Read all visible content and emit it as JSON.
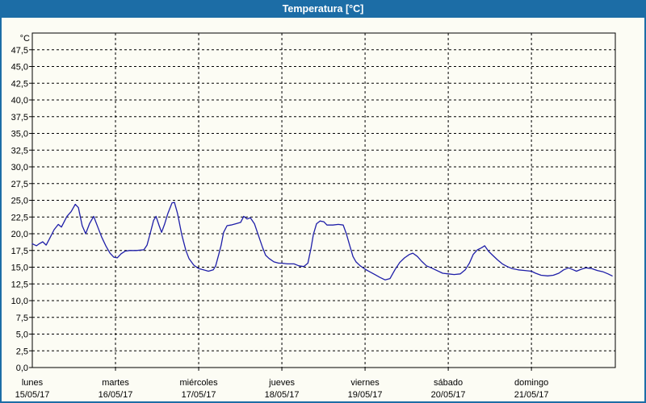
{
  "window": {
    "title": "Temperatura [°C]"
  },
  "colors": {
    "titlebar_bg": "#1C6DA6",
    "titlebar_text": "#FFFFFF",
    "frame_border": "#1C6DA6",
    "background": "#FCFCF4",
    "plot_border": "#000000",
    "grid": "#000000",
    "label_text": "#000000",
    "line": "#1E1EA8"
  },
  "chart_data": {
    "type": "line",
    "title": "Temperatura [°C]",
    "ylabel": "°C",
    "ylim": [
      0,
      50
    ],
    "ytick_step": 2.5,
    "ytick_labels": [
      "0,0",
      "2,5",
      "5,0",
      "7,5",
      "10,0",
      "12,5",
      "15,0",
      "17,5",
      "20,0",
      "22,5",
      "25,0",
      "27,5",
      "30,0",
      "32,5",
      "35,0",
      "37,5",
      "40,0",
      "42,5",
      "45,0",
      "47,5"
    ],
    "xlim_hours": [
      0,
      168.2
    ],
    "grid": "dashed",
    "legend": "none",
    "days": [
      {
        "name": "lunes",
        "date": "15/05/17"
      },
      {
        "name": "martes",
        "date": "16/05/17"
      },
      {
        "name": "miércoles",
        "date": "17/05/17"
      },
      {
        "name": "jueves",
        "date": "18/05/17"
      },
      {
        "name": "viernes",
        "date": "19/05/17"
      },
      {
        "name": "sábado",
        "date": "20/05/17"
      },
      {
        "name": "domingo",
        "date": "21/05/17"
      }
    ],
    "series": [
      {
        "name": "Temperatura",
        "unit": "°C",
        "points": [
          [
            0,
            18.5
          ],
          [
            1.2,
            18.2
          ],
          [
            2,
            18.5
          ],
          [
            3,
            18.8
          ],
          [
            4,
            18.3
          ],
          [
            5,
            19.3
          ],
          [
            6.3,
            20.6
          ],
          [
            7.5,
            21.4
          ],
          [
            8.4,
            21.0
          ],
          [
            10,
            22.6
          ],
          [
            11.2,
            23.3
          ],
          [
            12.4,
            24.4
          ],
          [
            13.3,
            23.9
          ],
          [
            14.4,
            21.2
          ],
          [
            15.4,
            20.0
          ],
          [
            16.5,
            21.5
          ],
          [
            17.7,
            22.6
          ],
          [
            18.9,
            21.0
          ],
          [
            20,
            19.5
          ],
          [
            21.2,
            18.2
          ],
          [
            22.4,
            17.1
          ],
          [
            23.5,
            16.5
          ],
          [
            24.5,
            16.4
          ],
          [
            25.6,
            17.0
          ],
          [
            26.8,
            17.4
          ],
          [
            28,
            17.5
          ],
          [
            30,
            17.5
          ],
          [
            32.2,
            17.6
          ],
          [
            33.1,
            18.3
          ],
          [
            34,
            20.0
          ],
          [
            35,
            22.0
          ],
          [
            35.7,
            22.6
          ],
          [
            36.6,
            21.2
          ],
          [
            37.3,
            20.2
          ],
          [
            38.2,
            21.5
          ],
          [
            39.1,
            23.0
          ],
          [
            40.3,
            24.6
          ],
          [
            41,
            24.7
          ],
          [
            41.9,
            23.0
          ],
          [
            43.1,
            19.9
          ],
          [
            44.3,
            17.5
          ],
          [
            45.2,
            16.3
          ],
          [
            46.6,
            15.3
          ],
          [
            48,
            14.8
          ],
          [
            49.4,
            14.6
          ],
          [
            50.8,
            14.4
          ],
          [
            52.2,
            14.6
          ],
          [
            52.9,
            15.2
          ],
          [
            53.8,
            16.9
          ],
          [
            54.5,
            18.3
          ],
          [
            55.2,
            20.2
          ],
          [
            56.2,
            21.2
          ],
          [
            57.3,
            21.3
          ],
          [
            58.7,
            21.5
          ],
          [
            60.1,
            21.7
          ],
          [
            61,
            22.6
          ],
          [
            62,
            22.2
          ],
          [
            62.9,
            22.4
          ],
          [
            64.1,
            21.5
          ],
          [
            65.2,
            19.8
          ],
          [
            66.4,
            18.0
          ],
          [
            67.3,
            16.8
          ],
          [
            68.3,
            16.3
          ],
          [
            69.7,
            15.8
          ],
          [
            71.1,
            15.6
          ],
          [
            72,
            15.6
          ],
          [
            73.6,
            15.5
          ],
          [
            75.5,
            15.5
          ],
          [
            76.9,
            15.2
          ],
          [
            78.3,
            15.1
          ],
          [
            79.5,
            15.6
          ],
          [
            80.4,
            17.8
          ],
          [
            81.1,
            19.9
          ],
          [
            82,
            21.5
          ],
          [
            83,
            21.9
          ],
          [
            84.1,
            21.8
          ],
          [
            85,
            21.3
          ],
          [
            86.7,
            21.3
          ],
          [
            88.3,
            21.4
          ],
          [
            89.7,
            21.3
          ],
          [
            90.6,
            20.0
          ],
          [
            91.6,
            18.2
          ],
          [
            92.5,
            16.6
          ],
          [
            93.4,
            15.8
          ],
          [
            94.6,
            15.2
          ],
          [
            96,
            14.7
          ],
          [
            97.4,
            14.3
          ],
          [
            98.8,
            13.9
          ],
          [
            100.2,
            13.5
          ],
          [
            101.8,
            13.1
          ],
          [
            103.2,
            13.3
          ],
          [
            104.6,
            14.6
          ],
          [
            106,
            15.7
          ],
          [
            107.4,
            16.4
          ],
          [
            108.8,
            16.9
          ],
          [
            109.8,
            17.1
          ],
          [
            111.1,
            16.6
          ],
          [
            112.3,
            15.9
          ],
          [
            113.7,
            15.2
          ],
          [
            115.1,
            14.9
          ],
          [
            116.7,
            14.5
          ],
          [
            118.4,
            14.1
          ],
          [
            120,
            14.0
          ],
          [
            121.7,
            13.9
          ],
          [
            123.5,
            14.0
          ],
          [
            124.9,
            14.6
          ],
          [
            126.1,
            15.6
          ],
          [
            127.2,
            16.9
          ],
          [
            128.4,
            17.6
          ],
          [
            129.6,
            17.9
          ],
          [
            130.5,
            18.2
          ],
          [
            131.6,
            17.4
          ],
          [
            132.8,
            16.8
          ],
          [
            134.2,
            16.1
          ],
          [
            135.6,
            15.5
          ],
          [
            137,
            15.1
          ],
          [
            138.4,
            14.8
          ],
          [
            140.2,
            14.6
          ],
          [
            142.1,
            14.5
          ],
          [
            144,
            14.4
          ],
          [
            145.2,
            14.1
          ],
          [
            146.8,
            13.8
          ],
          [
            148.7,
            13.7
          ],
          [
            150.3,
            13.8
          ],
          [
            151.9,
            14.1
          ],
          [
            153.3,
            14.6
          ],
          [
            154.7,
            14.9
          ],
          [
            156.1,
            14.6
          ],
          [
            157,
            14.4
          ],
          [
            158.4,
            14.7
          ],
          [
            159.8,
            14.9
          ],
          [
            161.4,
            14.8
          ],
          [
            163,
            14.5
          ],
          [
            164.7,
            14.3
          ],
          [
            166.1,
            14.0
          ],
          [
            167.3,
            13.7
          ]
        ]
      }
    ]
  }
}
